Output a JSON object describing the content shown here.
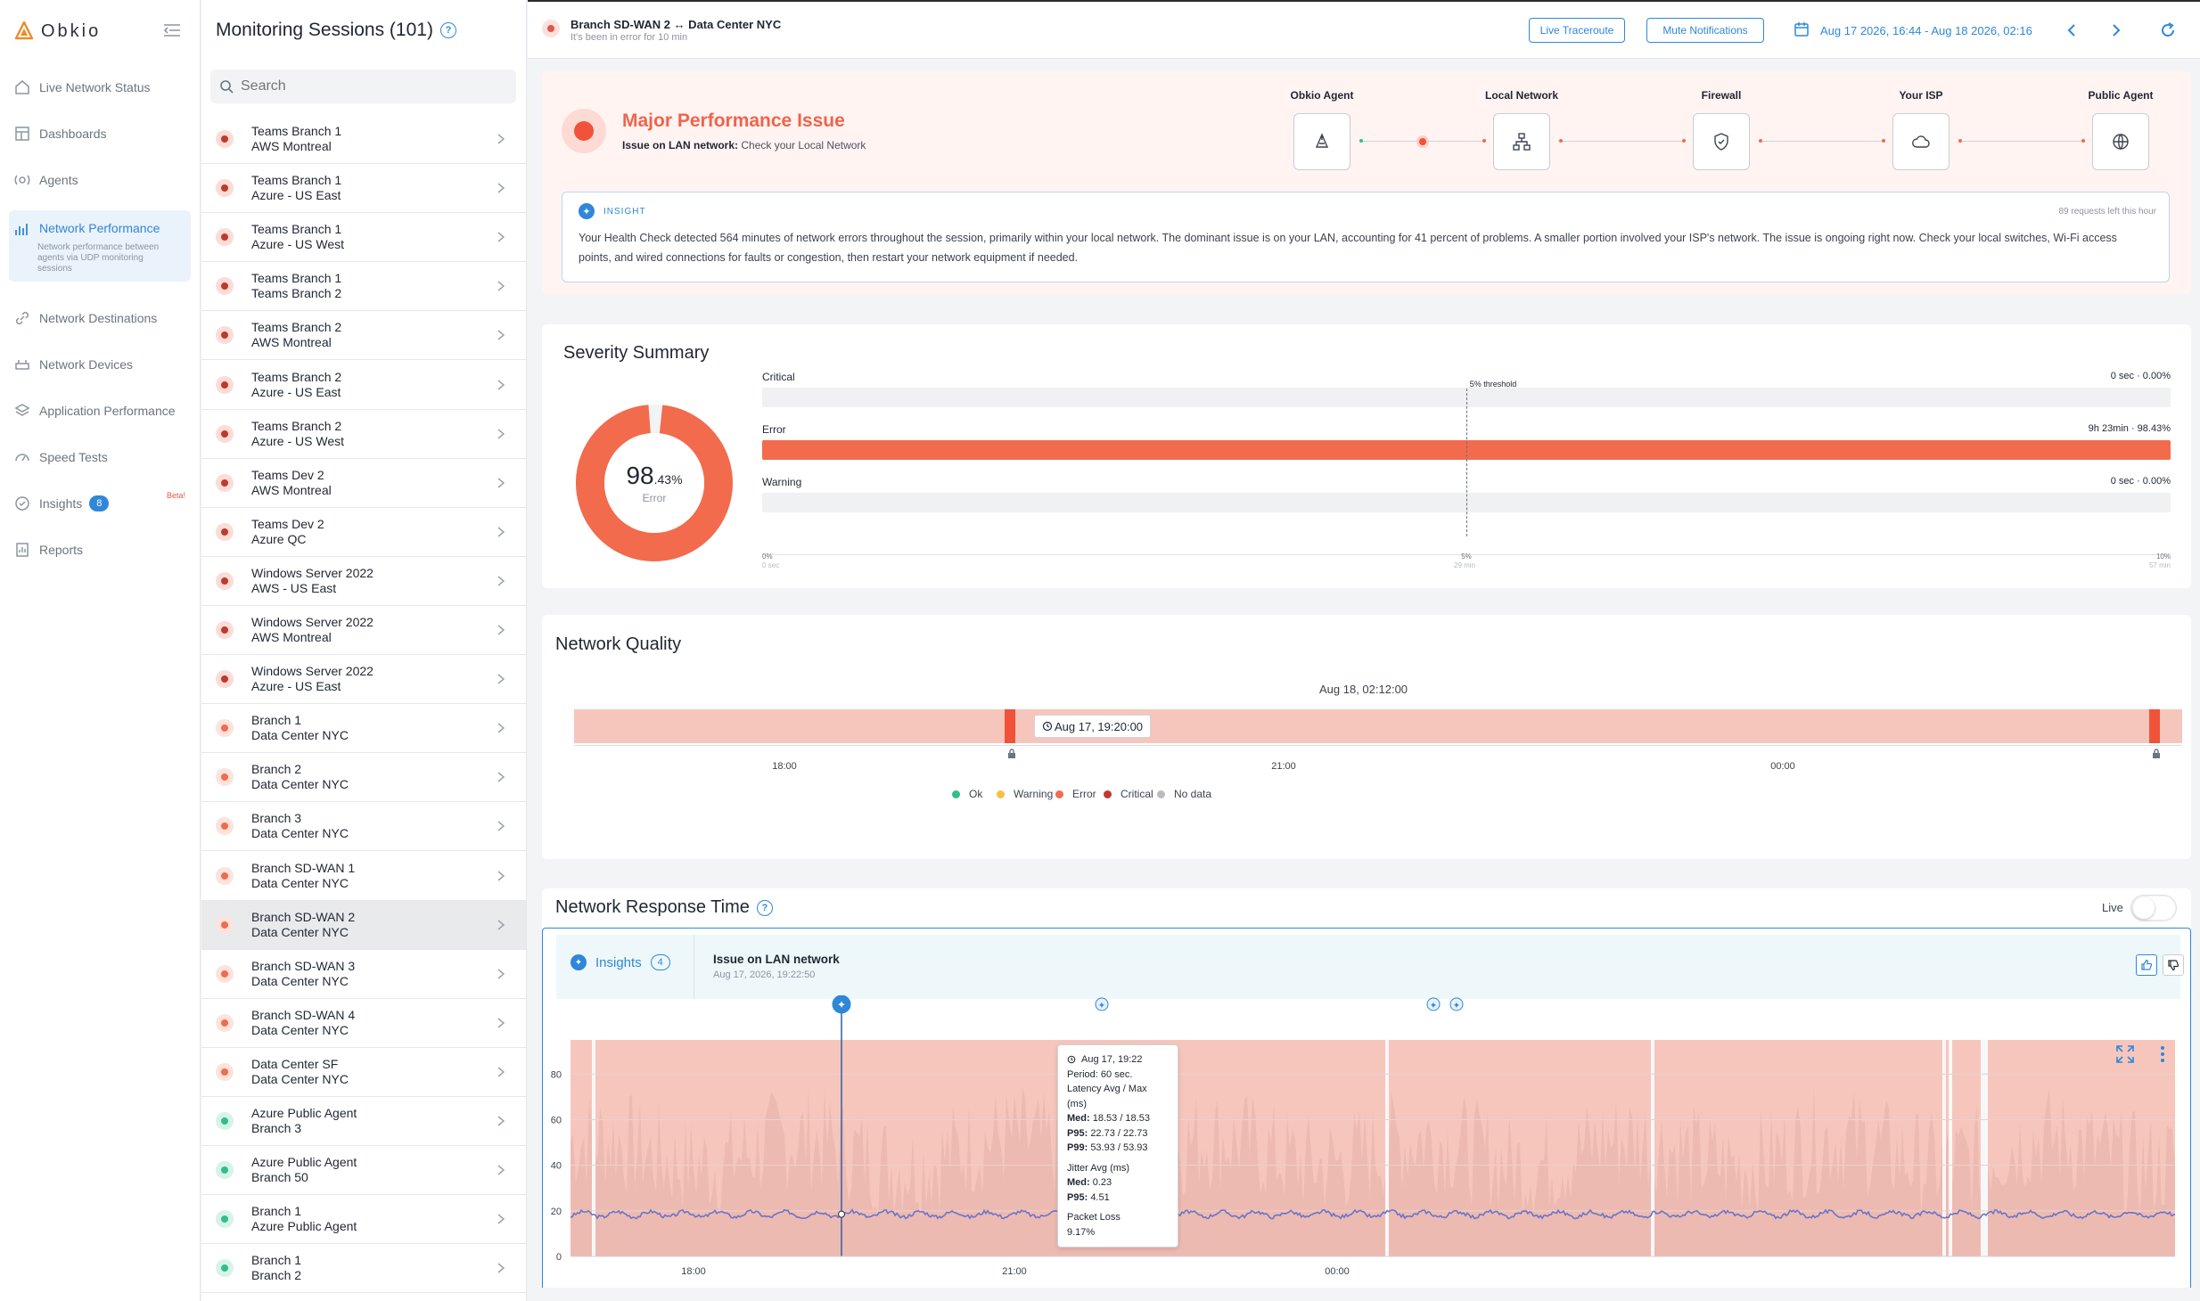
{
  "brand": {
    "name": "Obkio"
  },
  "nav": {
    "items": [
      {
        "label": "Live Network Status",
        "icon": "home-icon"
      },
      {
        "label": "Dashboards",
        "icon": "dashboard-icon"
      },
      {
        "label": "Agents",
        "icon": "agents-icon"
      },
      {
        "label": "Network Performance",
        "icon": "chart-icon",
        "sub": "Network performance between agents via UDP monitoring sessions"
      },
      {
        "label": "Network Destinations",
        "icon": "link-icon"
      },
      {
        "label": "Network Devices",
        "icon": "devices-icon"
      },
      {
        "label": "Application Performance",
        "icon": "layers-icon"
      },
      {
        "label": "Speed Tests",
        "icon": "speedometer-icon"
      },
      {
        "label": "Insights",
        "icon": "insights-icon",
        "badge": "8",
        "beta": "Beta!"
      },
      {
        "label": "Reports",
        "icon": "reports-icon"
      }
    ]
  },
  "sessions": {
    "title": "Monitoring Sessions (101)",
    "search_placeholder": "Search",
    "rows": [
      {
        "line1": "Teams Branch 1",
        "line2": "AWS Montreal",
        "status": "critical"
      },
      {
        "line1": "Teams Branch 1",
        "line2": "Azure - US East",
        "status": "critical"
      },
      {
        "line1": "Teams Branch 1",
        "line2": "Azure - US West",
        "status": "critical"
      },
      {
        "line1": "Teams Branch 1",
        "line2": "Teams Branch 2",
        "status": "critical"
      },
      {
        "line1": "Teams Branch 2",
        "line2": "AWS Montreal",
        "status": "critical"
      },
      {
        "line1": "Teams Branch 2",
        "line2": "Azure - US East",
        "status": "critical"
      },
      {
        "line1": "Teams Branch 2",
        "line2": "Azure - US West",
        "status": "critical"
      },
      {
        "line1": "Teams Dev 2",
        "line2": "AWS Montreal",
        "status": "critical"
      },
      {
        "line1": "Teams Dev 2",
        "line2": "Azure QC",
        "status": "critical"
      },
      {
        "line1": "Windows Server 2022",
        "line2": "AWS - US East",
        "status": "critical"
      },
      {
        "line1": "Windows Server 2022",
        "line2": "AWS Montreal",
        "status": "critical"
      },
      {
        "line1": "Windows Server 2022",
        "line2": "Azure - US East",
        "status": "critical"
      },
      {
        "line1": "Branch 1",
        "line2": "Data Center NYC",
        "status": "error"
      },
      {
        "line1": "Branch 2",
        "line2": "Data Center NYC",
        "status": "error"
      },
      {
        "line1": "Branch 3",
        "line2": "Data Center NYC",
        "status": "error"
      },
      {
        "line1": "Branch SD-WAN 1",
        "line2": "Data Center NYC",
        "status": "error"
      },
      {
        "line1": "Branch SD-WAN 2",
        "line2": "Data Center NYC",
        "status": "error",
        "selected": true
      },
      {
        "line1": "Branch SD-WAN 3",
        "line2": "Data Center NYC",
        "status": "error"
      },
      {
        "line1": "Branch SD-WAN 4",
        "line2": "Data Center NYC",
        "status": "error"
      },
      {
        "line1": "Data Center SF",
        "line2": "Data Center NYC",
        "status": "error"
      },
      {
        "line1": "Azure Public Agent",
        "line2": "Branch 3",
        "status": "ok"
      },
      {
        "line1": "Azure Public Agent",
        "line2": "Branch 50",
        "status": "ok"
      },
      {
        "line1": "Branch 1",
        "line2": "Azure Public Agent",
        "status": "ok"
      },
      {
        "line1": "Branch 1",
        "line2": "Branch 2",
        "status": "ok"
      }
    ]
  },
  "header": {
    "session_title": "Branch SD-WAN 2 ↔ Data Center NYC",
    "session_subtitle": "It's been in error for 10 min",
    "traceroute_label": "Live Traceroute",
    "mute_label": "Mute Notifications",
    "date_range": "Aug 17 2026, 16:44 - Aug 18 2026, 02:16"
  },
  "issue": {
    "title": "Major Performance Issue",
    "subtitle_bold": "Issue on LAN network:",
    "subtitle_rest": "Check your Local Network",
    "path": [
      {
        "label": "Obkio Agent",
        "icon": "agent-icon"
      },
      {
        "label": "Local Network",
        "icon": "network-icon"
      },
      {
        "label": "Firewall",
        "icon": "shield-icon"
      },
      {
        "label": "Your ISP",
        "icon": "cloud-icon"
      },
      {
        "label": "Public Agent",
        "icon": "globe-icon"
      }
    ],
    "insight_tag": "INSIGHT",
    "insight_quota": "89 requests left this hour",
    "insight_text": "Your Health Check detected 564 minutes of network errors throughout the session, primarily within your local network. The dominant issue is on your LAN, accounting for 41 percent of problems. A smaller portion involved your ISP's network. The issue is ongoing right now. Check your local switches, Wi-Fi access points, and wired connections for faults or congestion, then restart your network equipment if needed."
  },
  "severity": {
    "title": "Severity Summary",
    "donut_value": "98",
    "donut_decimal": ".43%",
    "donut_label": "Error",
    "donut_fraction": 0.9843,
    "threshold_label": "5% threshold",
    "rows": [
      {
        "label": "Critical",
        "value": "0 sec · 0.00%",
        "fraction": 0,
        "color": "#e2574c"
      },
      {
        "label": "Error",
        "value": "9h 23min · 98.43%",
        "fraction": 1,
        "color": "#f26b4d"
      },
      {
        "label": "Warning",
        "value": "0 sec · 0.00%",
        "fraction": 0,
        "color": "#f5c044"
      }
    ],
    "axis": [
      {
        "pct": "0%",
        "time": "0 sec"
      },
      {
        "pct": "5%",
        "time": "29 min"
      },
      {
        "pct": "10%",
        "time": "57 min"
      }
    ]
  },
  "quality": {
    "title": "Network Quality",
    "cursor_label": "Aug 18, 02:12:00",
    "marker_label": "Aug 17, 19:20:00",
    "ticks": [
      "18:00",
      "21:00",
      "00:00"
    ],
    "legend": [
      {
        "label": "Ok",
        "color": "#2fbf8a"
      },
      {
        "label": "Warning",
        "color": "#f5c044"
      },
      {
        "label": "Error",
        "color": "#f26b4d"
      },
      {
        "label": "Critical",
        "color": "#c0392b"
      },
      {
        "label": "No data",
        "color": "#b8bcc2"
      }
    ]
  },
  "response": {
    "title": "Network Response Time",
    "live_label": "Live",
    "insights_label": "Insights",
    "insights_count": "4",
    "issue_title": "Issue on LAN network",
    "issue_time": "Aug 17, 2026, 19:22:50",
    "y_ticks": [
      "80",
      "60",
      "40",
      "20",
      "0"
    ],
    "x_ticks": [
      "18:00",
      "21:00",
      "00:00"
    ],
    "tooltip": {
      "time": "Aug 17, 19:22",
      "period": "Period: 60 sec.",
      "latency_title": "Latency Avg / Max (ms)",
      "latency_med": "18.53 / 18.53",
      "latency_p95": "22.73 / 22.73",
      "latency_p99": "53.93 / 53.93",
      "jitter_title": "Jitter Avg (ms)",
      "jitter_med": "0.23",
      "jitter_p95": "4.51",
      "loss_title": "Packet Loss",
      "loss_value": "9.17%"
    }
  },
  "colors": {
    "accent": "#2f87d8",
    "error": "#f26b4d",
    "critical": "#c0392b",
    "ok": "#2fbf8a",
    "error_bg": "#f6c6bd"
  }
}
